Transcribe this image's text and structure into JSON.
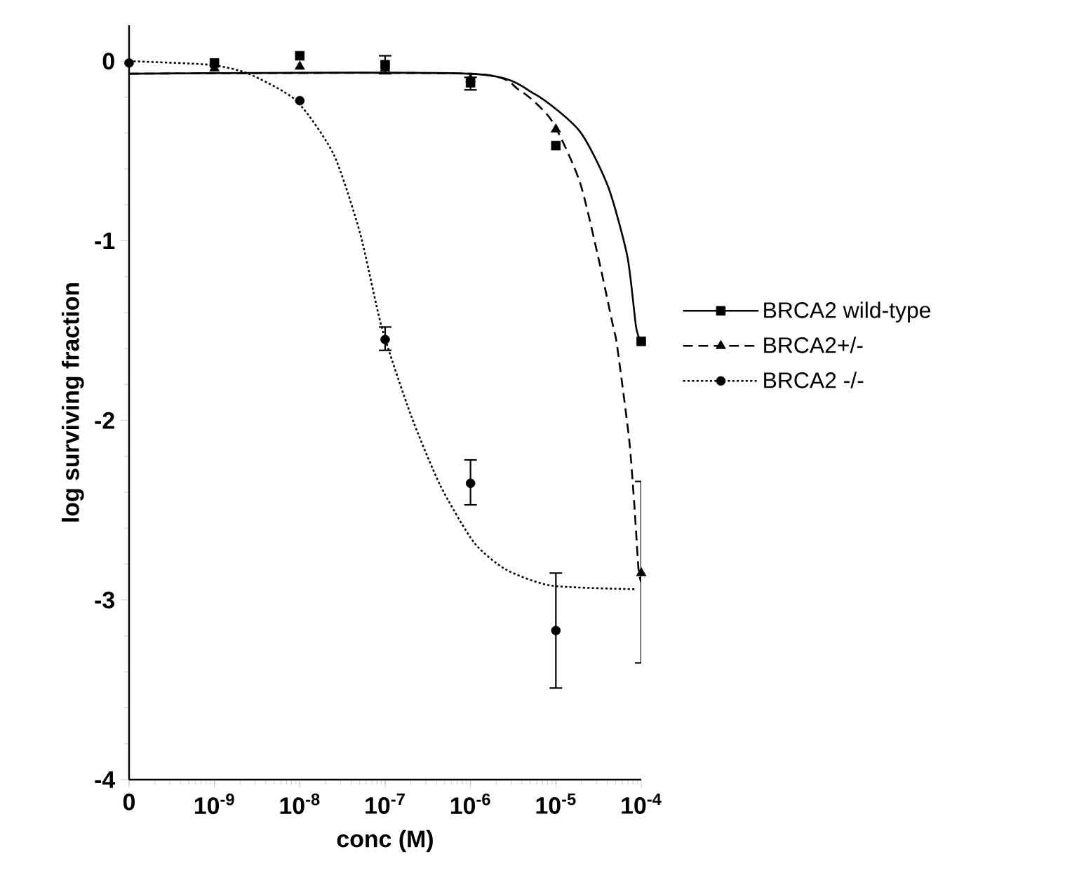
{
  "chart_data": {
    "type": "scatter",
    "xlabel": "conc (M)",
    "ylabel": "log surviving fraction",
    "log": "x",
    "xlim": [
      1e-10,
      0.0001
    ],
    "xticks": [
      {
        "value": 1e-10,
        "label": "0"
      },
      {
        "value": 1e-09,
        "label": "10$^{-9}$"
      },
      {
        "value": 1e-08,
        "label": "10$^{-8}$"
      },
      {
        "value": 1e-07,
        "label": "10$^{-7}$"
      },
      {
        "value": 1e-06,
        "label": "10$^{-6}$"
      },
      {
        "value": 1e-05,
        "label": "10$^{-5}$"
      },
      {
        "value": 0.0001,
        "label": "10$^{-4}$"
      }
    ],
    "ylim": [
      -4,
      0.2
    ],
    "yticks": [
      -4,
      -3,
      -2,
      -1,
      0
    ],
    "legend": "right",
    "grid": false,
    "series": [
      {
        "name": "BRCA2 wild-type",
        "marker": "square",
        "line_style": "solid",
        "color": "#000000",
        "x": [
          1e-09,
          1e-08,
          1e-07,
          1e-06,
          1e-05,
          0.0001
        ],
        "values": [
          -0.01,
          0.03,
          -0.02,
          -0.12,
          -0.47,
          -1.56
        ],
        "errors": [
          null,
          null,
          [
            -0.07,
            0.03
          ],
          [
            -0.16,
            -0.09
          ],
          null,
          null
        ]
      },
      {
        "name": "BRCA2+/-",
        "marker": "triangle",
        "line_style": "dashed",
        "color": "#000000",
        "x": [
          1e-09,
          1e-08,
          1e-07,
          1e-06,
          1e-05,
          0.0001
        ],
        "values": [
          -0.04,
          -0.03,
          -0.04,
          -0.1,
          -0.38,
          -2.85
        ],
        "errors": [
          null,
          null,
          null,
          null,
          null,
          [
            -3.35,
            -2.34
          ]
        ]
      },
      {
        "name": "BRCA2 -/-",
        "marker": "circle",
        "line_style": "dotted",
        "color": "#000000",
        "x": [
          1e-10,
          1e-08,
          1e-07,
          1e-06,
          1e-05
        ],
        "values": [
          -0.01,
          -0.22,
          -1.55,
          -2.35,
          -3.17
        ],
        "errors": [
          null,
          null,
          [
            -1.61,
            -1.48
          ],
          [
            -2.47,
            -2.22
          ],
          [
            -3.49,
            -2.85
          ]
        ]
      },
      {
        "type": "line",
        "line_style": "solid",
        "marker": "none",
        "color": "#000000",
        "x": [
          1e-10,
          1e-06,
          5.5e-06,
          1.9e-05,
          4.1e-05,
          6.9e-05,
          8.7e-05,
          0.0001
        ],
        "values": [
          -0.07,
          -0.07,
          -0.18,
          -0.39,
          -0.7,
          -1.09,
          -1.48,
          -1.56
        ]
      },
      {
        "type": "line",
        "line_style": "dashed",
        "marker": "none",
        "color": "#000000",
        "x": [
          1e-10,
          1e-06,
          3.7e-06,
          8.9e-06,
          1.9e-05,
          3.2e-05,
          4.7e-05,
          5.2e-05,
          7.2e-05,
          8.3e-05,
          9.3e-05,
          0.0001
        ],
        "values": [
          -0.07,
          -0.07,
          -0.16,
          -0.33,
          -0.67,
          -1.11,
          -1.48,
          -1.58,
          -2.1,
          -2.47,
          -2.83,
          -2.9
        ]
      },
      {
        "type": "line",
        "line_style": "dotted",
        "marker": "none",
        "color": "#000000",
        "x": [
          1e-10,
          8.7e-10,
          2.5e-09,
          9.1e-09,
          2.5e-08,
          5.1e-08,
          9.1e-08,
          2e-07,
          4.4e-07,
          1.1e-06,
          2.6e-06,
          8.9e-06,
          8.7e-05
        ],
        "values": [
          0.0,
          -0.02,
          -0.07,
          -0.22,
          -0.52,
          -0.96,
          -1.48,
          -1.97,
          -2.36,
          -2.68,
          -2.83,
          -2.92,
          -2.94
        ]
      }
    ]
  }
}
